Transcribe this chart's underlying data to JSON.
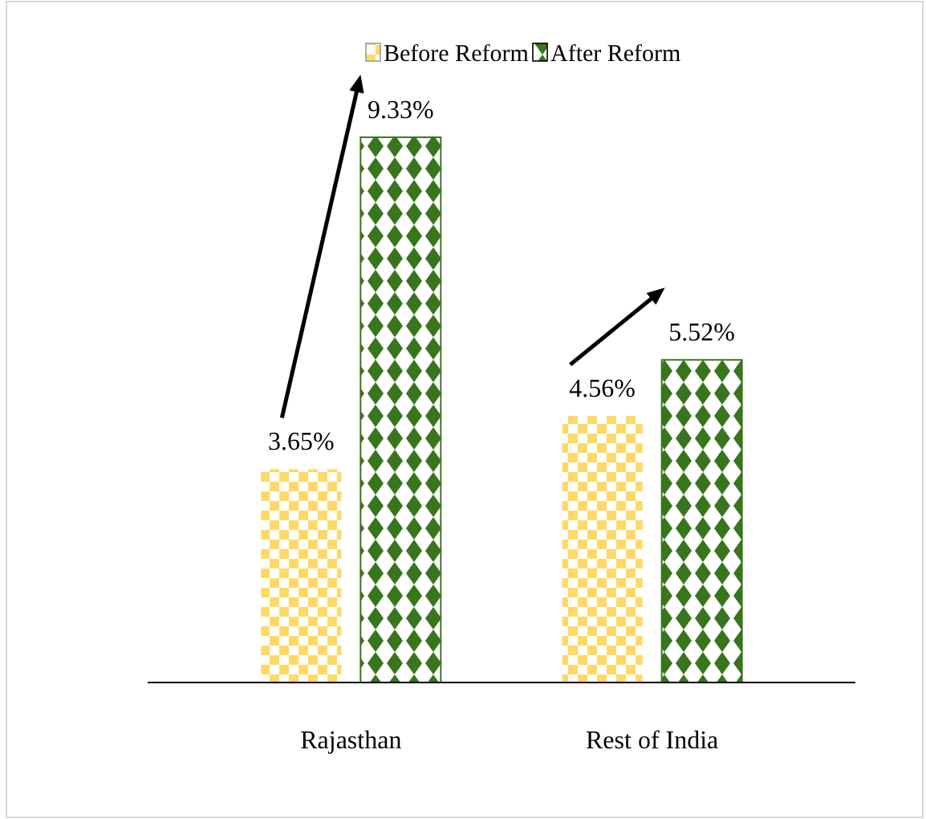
{
  "chart_data": {
    "type": "bar",
    "categories": [
      "Rajasthan",
      "Rest of India"
    ],
    "series": [
      {
        "name": "Before Reform",
        "color": "#ffd966",
        "values": [
          3.65,
          4.56
        ],
        "value_labels": [
          "3.65%",
          "4.56%"
        ]
      },
      {
        "name": "After  Reform",
        "color": "#38761d",
        "values": [
          9.33,
          5.52
        ],
        "value_labels": [
          "9.33%",
          "5.52%"
        ]
      }
    ],
    "legend": "top"
  }
}
